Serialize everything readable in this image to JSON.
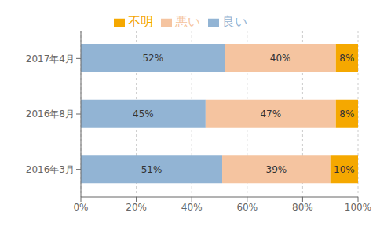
{
  "chart_data": {
    "type": "bar",
    "orientation": "horizontal",
    "stacked": true,
    "data_labels": true,
    "grid": true,
    "legend": "top",
    "categories": [
      "2016年3月",
      "2016年8月",
      "2017年4月"
    ],
    "series": [
      {
        "name": "良い",
        "color": "#92b4d4",
        "values": [
          51,
          45,
          52
        ],
        "value_labels": [
          "51%",
          "45%",
          "52%"
        ]
      },
      {
        "name": "悪い",
        "color": "#f5c4a0",
        "values": [
          39,
          47,
          40
        ],
        "value_labels": [
          "39%",
          "47%",
          "40%"
        ]
      },
      {
        "name": "不明",
        "color": "#f5a800",
        "values": [
          10,
          8,
          8
        ],
        "value_labels": [
          "10%",
          "8%",
          "8%"
        ]
      }
    ],
    "xlim": [
      0,
      100
    ],
    "xticks": [
      {
        "value": 0,
        "label": "0%"
      },
      {
        "value": 20,
        "label": "20%"
      },
      {
        "value": 40,
        "label": "40%"
      },
      {
        "value": 60,
        "label": "60%"
      },
      {
        "value": 80,
        "label": "80%"
      },
      {
        "value": 100,
        "label": "100%"
      }
    ]
  }
}
